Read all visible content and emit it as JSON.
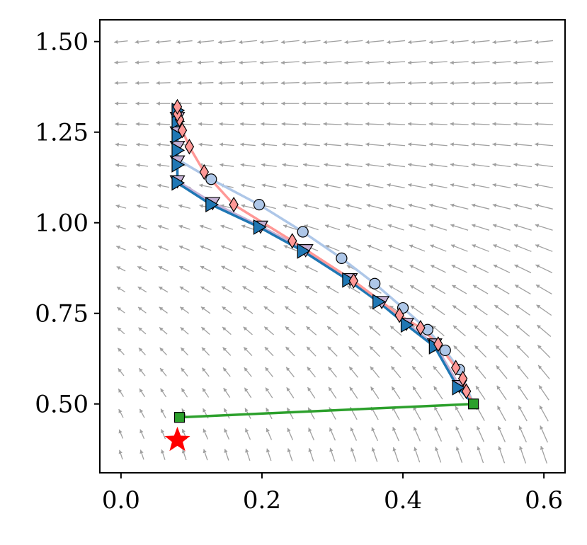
{
  "chart_data": {
    "type": "line",
    "title": "",
    "xlabel": "",
    "ylabel": "",
    "xlim": [
      -0.03,
      0.63
    ],
    "ylim": [
      0.31,
      1.56
    ],
    "xticks": [
      0.0,
      0.2,
      0.4,
      0.6
    ],
    "xtick_labels": [
      "0.0",
      "0.2",
      "0.4",
      "0.6"
    ],
    "yticks": [
      0.5,
      0.75,
      1.0,
      1.25,
      1.5
    ],
    "ytick_labels": [
      "0.50",
      "0.75",
      "1.00",
      "1.25",
      "1.50"
    ],
    "grid": false,
    "legend": "none",
    "vector_field": {
      "color": "#a0a0a0",
      "x_range": [
        0.0,
        0.6
      ],
      "y_range": [
        0.36,
        1.5
      ],
      "nx": 21,
      "ny": 21
    },
    "target_point": {
      "x": 0.08,
      "y": 0.4,
      "marker": "star",
      "color": "#ff0000"
    },
    "series": [
      {
        "color": "#aec7e8",
        "marker": "circle",
        "points": [
          [
            0.5,
            0.5
          ],
          [
            0.48,
            0.595
          ],
          [
            0.46,
            0.648
          ],
          [
            0.435,
            0.705
          ],
          [
            0.4,
            0.765
          ],
          [
            0.36,
            0.832
          ],
          [
            0.313,
            0.902
          ],
          [
            0.258,
            0.975
          ],
          [
            0.196,
            1.05
          ],
          [
            0.128,
            1.12
          ],
          [
            0.08,
            1.175
          ],
          [
            0.08,
            1.23
          ],
          [
            0.08,
            1.28
          ],
          [
            0.08,
            1.31
          ]
        ],
        "marked_indices": [
          1,
          2,
          3,
          4,
          5,
          6,
          7,
          8,
          9
        ]
      },
      {
        "color": "#c5b0d5",
        "marker": "triangle-down",
        "points": [
          [
            0.5,
            0.5
          ],
          [
            0.48,
            0.55
          ],
          [
            0.445,
            0.665
          ],
          [
            0.405,
            0.722
          ],
          [
            0.37,
            0.782
          ],
          [
            0.325,
            0.845
          ],
          [
            0.262,
            0.925
          ],
          [
            0.198,
            0.99
          ],
          [
            0.13,
            1.055
          ],
          [
            0.08,
            1.115
          ],
          [
            0.08,
            1.17
          ],
          [
            0.08,
            1.21
          ],
          [
            0.08,
            1.25
          ],
          [
            0.08,
            1.29
          ]
        ],
        "marked_indices": [
          1,
          2,
          3,
          4,
          5,
          6,
          7,
          8,
          9,
          10,
          11,
          12,
          13
        ]
      },
      {
        "color": "#1f77b4",
        "marker": "triangle-right",
        "points": [
          [
            0.5,
            0.5
          ],
          [
            0.478,
            0.545
          ],
          [
            0.445,
            0.658
          ],
          [
            0.405,
            0.718
          ],
          [
            0.365,
            0.782
          ],
          [
            0.322,
            0.842
          ],
          [
            0.258,
            0.922
          ],
          [
            0.196,
            0.988
          ],
          [
            0.128,
            1.05
          ],
          [
            0.08,
            1.11
          ],
          [
            0.08,
            1.16
          ],
          [
            0.08,
            1.2
          ],
          [
            0.08,
            1.24
          ],
          [
            0.08,
            1.28
          ],
          [
            0.08,
            1.31
          ]
        ],
        "marked_indices": [
          1,
          2,
          3,
          4,
          5,
          6,
          7,
          8,
          9,
          10,
          11,
          12,
          13,
          14
        ]
      },
      {
        "color": "#ff9896",
        "marker": "diamond",
        "points": [
          [
            0.5,
            0.5
          ],
          [
            0.49,
            0.535
          ],
          [
            0.485,
            0.57
          ],
          [
            0.475,
            0.6
          ],
          [
            0.45,
            0.665
          ],
          [
            0.425,
            0.71
          ],
          [
            0.395,
            0.745
          ],
          [
            0.33,
            0.84
          ],
          [
            0.243,
            0.95
          ],
          [
            0.16,
            1.05
          ],
          [
            0.118,
            1.14
          ],
          [
            0.097,
            1.21
          ],
          [
            0.087,
            1.255
          ],
          [
            0.083,
            1.285
          ],
          [
            0.08,
            1.3
          ],
          [
            0.08,
            1.32
          ]
        ],
        "marked_indices": [
          1,
          2,
          3,
          4,
          5,
          6,
          7,
          8,
          9,
          10,
          11,
          12,
          13,
          14,
          15
        ]
      },
      {
        "color": "#2ca02c",
        "marker": "square",
        "points": [
          [
            0.5,
            0.5
          ],
          [
            0.083,
            0.463
          ]
        ],
        "marked_indices": [
          0,
          1
        ]
      }
    ]
  }
}
